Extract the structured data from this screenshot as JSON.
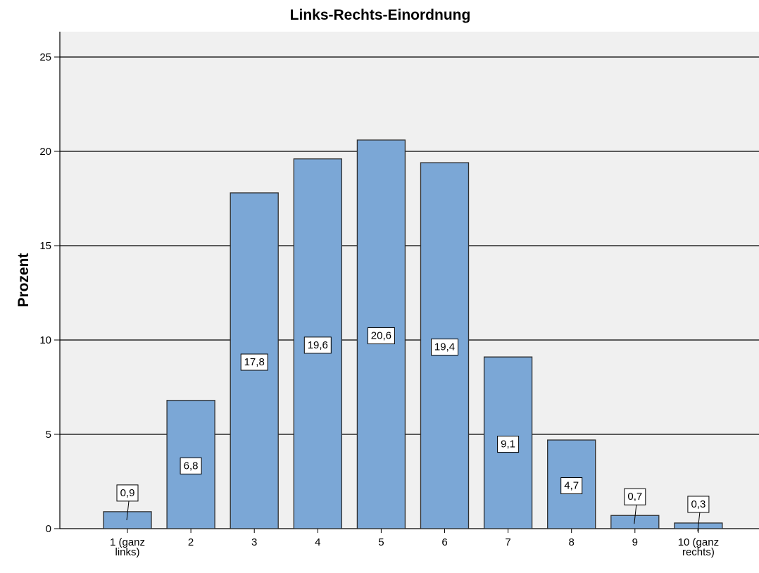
{
  "chart_data": {
    "type": "bar",
    "title": "Links-Rechts-Einordnung",
    "xlabel": "",
    "ylabel": "Prozent",
    "categories": [
      "1 (ganz links)",
      "2",
      "3",
      "4",
      "5",
      "6",
      "7",
      "8",
      "9",
      "10 (ganz rechts)"
    ],
    "category_lines": [
      [
        "1 (ganz",
        "links)"
      ],
      [
        "2"
      ],
      [
        "3"
      ],
      [
        "4"
      ],
      [
        "5"
      ],
      [
        "6"
      ],
      [
        "7"
      ],
      [
        "8"
      ],
      [
        "9"
      ],
      [
        "10 (ganz",
        "rechts)"
      ]
    ],
    "values": [
      0.9,
      6.8,
      17.8,
      19.6,
      20.6,
      19.4,
      9.1,
      4.7,
      0.7,
      0.3
    ],
    "value_labels": [
      "0,9",
      "6,8",
      "17,8",
      "19,6",
      "20,6",
      "19,4",
      "9,1",
      "4,7",
      "0,7",
      "0,3"
    ],
    "ylim": [
      0,
      25
    ],
    "yticks": [
      0,
      5,
      10,
      15,
      20,
      25
    ],
    "grid": true,
    "colors": {
      "bar_fill": "#7ba7d6",
      "bar_stroke": "#2e2e2e",
      "plot_background": "#f0f0f0",
      "gridline": "#000000"
    }
  }
}
